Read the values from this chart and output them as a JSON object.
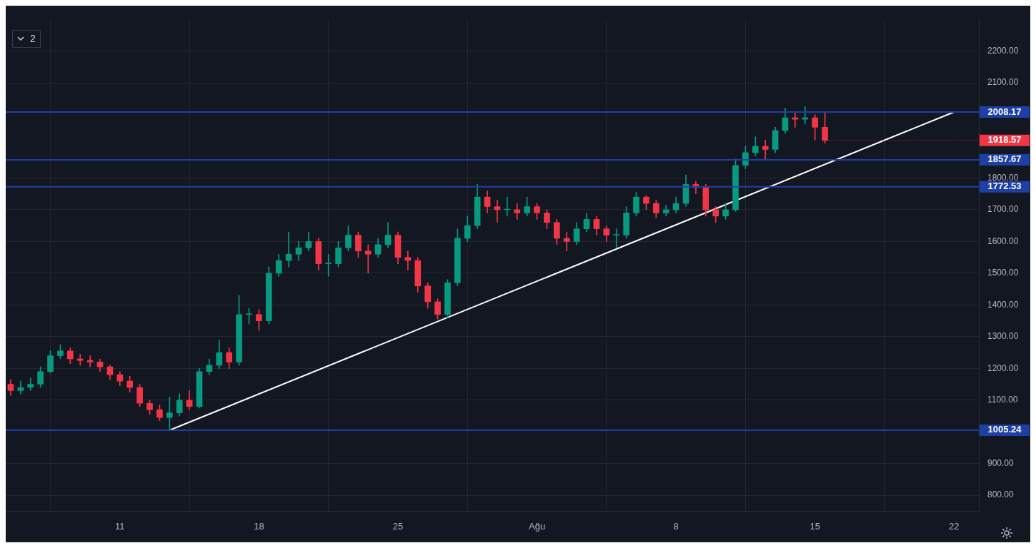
{
  "chart_data": {
    "type": "candlestick",
    "x": [
      "--07-05T12:00",
      "--07-06T00:00",
      "--07-06T12:00",
      "--07-07T00:00",
      "--07-07T12:00",
      "--07-08T00:00",
      "--07-08T12:00",
      "--07-09T00:00",
      "--07-09T12:00",
      "--07-10T00:00",
      "--07-10T12:00",
      "--07-11T00:00",
      "--07-11T12:00",
      "--07-12T00:00",
      "--07-12T12:00",
      "--07-13T00:00",
      "--07-13T12:00",
      "--07-14T00:00",
      "--07-14T12:00",
      "--07-15T00:00",
      "--07-15T12:00",
      "--07-16T00:00",
      "--07-16T12:00",
      "--07-17T00:00",
      "--07-17T12:00",
      "--07-18T00:00",
      "--07-18T12:00",
      "--07-19T00:00",
      "--07-19T12:00",
      "--07-20T00:00",
      "--07-20T12:00",
      "--07-21T00:00",
      "--07-21T12:00",
      "--07-22T00:00",
      "--07-22T12:00",
      "--07-23T00:00",
      "--07-23T12:00",
      "--07-24T00:00",
      "--07-24T12:00",
      "--07-25T00:00",
      "--07-25T12:00",
      "--07-26T00:00",
      "--07-26T12:00",
      "--07-27T00:00",
      "--07-27T12:00",
      "--07-28T00:00",
      "--07-28T12:00",
      "--07-29T00:00",
      "--07-29T12:00",
      "--07-30T00:00",
      "--07-30T12:00",
      "--07-31T00:00",
      "--07-31T12:00",
      "--08-01T00:00",
      "--08-01T12:00",
      "--08-02T00:00",
      "--08-02T12:00",
      "--08-03T00:00",
      "--08-03T12:00",
      "--08-04T00:00",
      "--08-04T12:00",
      "--08-05T00:00",
      "--08-05T12:00",
      "--08-06T00:00",
      "--08-06T12:00",
      "--08-07T00:00",
      "--08-07T12:00",
      "--08-08T00:00",
      "--08-08T12:00",
      "--08-09T00:00",
      "--08-09T12:00",
      "--08-10T00:00",
      "--08-10T12:00",
      "--08-11T00:00",
      "--08-11T12:00",
      "--08-12T00:00",
      "--08-12T12:00",
      "--08-13T00:00",
      "--08-13T12:00",
      "--08-14T00:00",
      "--08-14T12:00",
      "--08-15T00:00",
      "--08-15T12:00"
    ],
    "ohlc": [
      [
        1150,
        1165,
        1115,
        1130
      ],
      [
        1130,
        1160,
        1120,
        1140
      ],
      [
        1140,
        1170,
        1130,
        1150
      ],
      [
        1150,
        1205,
        1140,
        1190
      ],
      [
        1190,
        1255,
        1185,
        1240
      ],
      [
        1240,
        1275,
        1230,
        1255
      ],
      [
        1255,
        1265,
        1215,
        1230
      ],
      [
        1230,
        1245,
        1210,
        1225
      ],
      [
        1225,
        1240,
        1205,
        1220
      ],
      [
        1220,
        1230,
        1190,
        1205
      ],
      [
        1205,
        1210,
        1165,
        1180
      ],
      [
        1180,
        1190,
        1145,
        1160
      ],
      [
        1160,
        1175,
        1125,
        1140
      ],
      [
        1140,
        1150,
        1080,
        1090
      ],
      [
        1090,
        1100,
        1055,
        1070
      ],
      [
        1070,
        1085,
        1035,
        1045
      ],
      [
        1045,
        1110,
        1005.24,
        1060
      ],
      [
        1060,
        1120,
        1050,
        1100
      ],
      [
        1100,
        1130,
        1070,
        1080
      ],
      [
        1080,
        1200,
        1075,
        1190
      ],
      [
        1190,
        1230,
        1180,
        1210
      ],
      [
        1210,
        1290,
        1200,
        1250
      ],
      [
        1250,
        1265,
        1200,
        1220
      ],
      [
        1220,
        1430,
        1210,
        1370
      ],
      [
        1370,
        1390,
        1340,
        1370
      ],
      [
        1370,
        1385,
        1320,
        1350
      ],
      [
        1350,
        1520,
        1340,
        1500
      ],
      [
        1500,
        1560,
        1490,
        1540
      ],
      [
        1540,
        1630,
        1520,
        1560
      ],
      [
        1560,
        1600,
        1540,
        1580
      ],
      [
        1580,
        1630,
        1570,
        1600
      ],
      [
        1600,
        1610,
        1510,
        1530
      ],
      [
        1530,
        1560,
        1490,
        1530
      ],
      [
        1530,
        1600,
        1520,
        1580
      ],
      [
        1580,
        1650,
        1570,
        1620
      ],
      [
        1620,
        1630,
        1550,
        1570
      ],
      [
        1570,
        1590,
        1500,
        1560
      ],
      [
        1560,
        1610,
        1550,
        1590
      ],
      [
        1590,
        1660,
        1580,
        1620
      ],
      [
        1620,
        1630,
        1530,
        1550
      ],
      [
        1550,
        1570,
        1510,
        1540
      ],
      [
        1540,
        1550,
        1440,
        1460
      ],
      [
        1460,
        1470,
        1390,
        1410
      ],
      [
        1410,
        1420,
        1355,
        1370
      ],
      [
        1370,
        1480,
        1360,
        1470
      ],
      [
        1470,
        1640,
        1460,
        1610
      ],
      [
        1610,
        1680,
        1600,
        1650
      ],
      [
        1650,
        1780,
        1640,
        1740
      ],
      [
        1740,
        1760,
        1690,
        1710
      ],
      [
        1710,
        1730,
        1660,
        1700
      ],
      [
        1700,
        1740,
        1680,
        1700
      ],
      [
        1700,
        1720,
        1670,
        1690
      ],
      [
        1690,
        1740,
        1680,
        1710
      ],
      [
        1710,
        1720,
        1670,
        1690
      ],
      [
        1690,
        1700,
        1640,
        1660
      ],
      [
        1660,
        1670,
        1590,
        1610
      ],
      [
        1610,
        1630,
        1570,
        1600
      ],
      [
        1600,
        1660,
        1590,
        1640
      ],
      [
        1640,
        1690,
        1630,
        1670
      ],
      [
        1670,
        1680,
        1620,
        1640
      ],
      [
        1640,
        1650,
        1600,
        1620
      ],
      [
        1620,
        1640,
        1580,
        1620
      ],
      [
        1620,
        1710,
        1610,
        1690
      ],
      [
        1690,
        1755,
        1680,
        1740
      ],
      [
        1740,
        1745,
        1700,
        1720
      ],
      [
        1720,
        1730,
        1675,
        1690
      ],
      [
        1690,
        1715,
        1680,
        1700
      ],
      [
        1700,
        1740,
        1690,
        1720
      ],
      [
        1720,
        1810,
        1710,
        1780
      ],
      [
        1780,
        1790,
        1750,
        1770
      ],
      [
        1770,
        1780,
        1680,
        1700
      ],
      [
        1700,
        1710,
        1660,
        1680
      ],
      [
        1680,
        1720,
        1670,
        1700
      ],
      [
        1700,
        1860,
        1695,
        1840
      ],
      [
        1840,
        1900,
        1830,
        1880
      ],
      [
        1880,
        1930,
        1870,
        1900
      ],
      [
        1900,
        1920,
        1860,
        1890
      ],
      [
        1890,
        1960,
        1880,
        1950
      ],
      [
        1950,
        2020,
        1940,
        1990
      ],
      [
        1990,
        2010,
        1960,
        1985
      ],
      [
        1985,
        2025,
        1970,
        1990
      ],
      [
        1990,
        2000,
        1920,
        1960
      ],
      [
        1960,
        2005,
        1910,
        1918.57
      ]
    ],
    "series": [
      {
        "type": "line",
        "x": [
          "--07-13T12:00",
          "--08-22T00:00"
        ],
        "values": [
          1005.24,
          2008.17
        ],
        "color": "#ffffff"
      }
    ],
    "xlim": [
      "--07-05T06:00",
      "--08-23T06:00"
    ],
    "xticks": [
      {
        "value": "--07-11",
        "label": "11"
      },
      {
        "value": "--07-18",
        "label": "18"
      },
      {
        "value": "--07-25",
        "label": "25"
      },
      {
        "value": "--08-01",
        "label": "Ağu"
      },
      {
        "value": "--08-08",
        "label": "8"
      },
      {
        "value": "--08-15",
        "label": "15"
      },
      {
        "value": "--08-22",
        "label": "22"
      }
    ],
    "ylim": [
      750,
      2300
    ],
    "yticks": [
      {
        "value": 800,
        "label": "800.00"
      },
      {
        "value": 900,
        "label": "900.00"
      },
      {
        "value": 1100,
        "label": "1100.00"
      },
      {
        "value": 1200,
        "label": "1200.00"
      },
      {
        "value": 1300,
        "label": "1300.00"
      },
      {
        "value": 1400,
        "label": "1400.00"
      },
      {
        "value": 1500,
        "label": "1500.00"
      },
      {
        "value": 1600,
        "label": "1600.00"
      },
      {
        "value": 1700,
        "label": "1700.00"
      },
      {
        "value": 1800,
        "label": "1800.00"
      },
      {
        "value": 2100,
        "label": "2100.00"
      },
      {
        "value": 2200,
        "label": "2200.00"
      }
    ],
    "ref_lines": [
      {
        "axis": "y",
        "value": 2008.17,
        "label": "2008.17",
        "color": "#1e3fa3"
      },
      {
        "axis": "y",
        "value": 1857.67,
        "label": "1857.67",
        "color": "#1e3fa3"
      },
      {
        "axis": "y",
        "value": 1772.53,
        "label": "1772.53",
        "color": "#1e3fa3"
      },
      {
        "axis": "y",
        "value": 1005.24,
        "label": "1005.24",
        "color": "#1e3fa3"
      }
    ],
    "annotations": [
      "2",
      {
        "text": "1918.57",
        "x": "--08-15T12:00",
        "y": 1918.57
      }
    ],
    "grid": true,
    "legend": false
  }
}
